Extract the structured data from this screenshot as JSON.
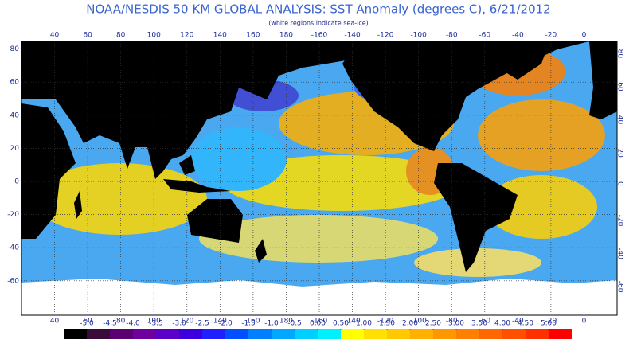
{
  "header": {
    "title": "NOAA/NESDIS 50 KM GLOBAL ANALYSIS: SST Anomaly (degrees C), 6/21/2012",
    "subtitle": "(white regions indicate sea-ice)"
  },
  "map": {
    "lon_ticks": [
      40,
      60,
      80,
      100,
      120,
      140,
      160,
      180,
      -160,
      -140,
      -120,
      -100,
      -80,
      -60,
      -40,
      -20,
      0
    ],
    "lat_ticks": [
      80,
      60,
      40,
      20,
      0,
      -20,
      -40,
      -60
    ]
  },
  "colorbar": {
    "ticks": [
      {
        "value": -5,
        "label": "-5.0"
      },
      -4.5,
      {
        "value": -4,
        "label": "-4.0"
      },
      -3.5,
      {
        "value": -3,
        "label": "-3.0"
      },
      -2.5,
      {
        "value": -2,
        "label": "-2.0"
      },
      -1.5,
      {
        "value": -1,
        "label": "-1.0"
      },
      -0.5,
      {
        "value": 0,
        "label": "0.00"
      },
      {
        "value": 0.5,
        "label": "0.50"
      },
      {
        "value": 1,
        "label": "1.00"
      },
      {
        "value": 1.5,
        "label": "1.50"
      },
      {
        "value": 2,
        "label": "2.00"
      },
      {
        "value": 2.5,
        "label": "2.50"
      },
      {
        "value": 3,
        "label": "3.00"
      },
      {
        "value": 3.5,
        "label": "3.50"
      },
      {
        "value": 4,
        "label": "4.00"
      },
      {
        "value": 4.5,
        "label": "4.50"
      },
      {
        "value": 5,
        "label": "5.00"
      }
    ],
    "colors": [
      "#000000",
      "#3a0a3a",
      "#5a0070",
      "#6e00a0",
      "#5a00c8",
      "#3c00e0",
      "#2020ff",
      "#0050ff",
      "#0080ff",
      "#00a8ff",
      "#00d0ff",
      "#00f0ff",
      "#ffff00",
      "#ffe000",
      "#ffc800",
      "#ffb000",
      "#ff9800",
      "#ff8000",
      "#ff6800",
      "#ff5000",
      "#ff3000",
      "#ff0000"
    ]
  }
}
